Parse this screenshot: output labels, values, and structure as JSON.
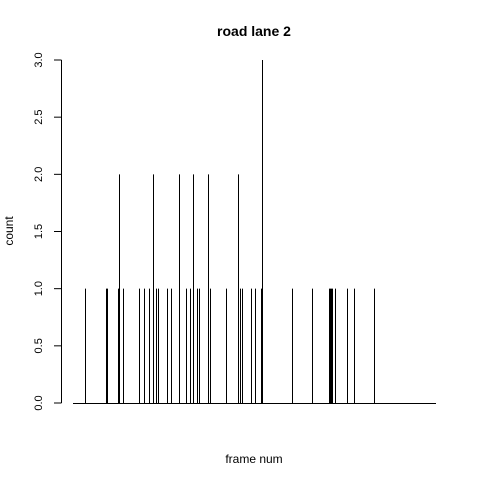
{
  "chart_data": {
    "type": "bar",
    "title": "road lane 2",
    "xlabel": "frame num",
    "ylabel": "count",
    "ylim": [
      0,
      3
    ],
    "yticks": [
      "0.0",
      "0.5",
      "1.0",
      "1.5",
      "2.0",
      "2.5",
      "3.0"
    ],
    "bar_color": "#000000",
    "x_axis_ticks_shown": false,
    "grid": false,
    "xlim": [
      0,
      160
    ],
    "points": [
      {
        "x": 3,
        "y": 1
      },
      {
        "x": 13,
        "y": 1
      },
      {
        "x": 13.5,
        "y": 1
      },
      {
        "x": 19,
        "y": 1
      },
      {
        "x": 19.5,
        "y": 2
      },
      {
        "x": 21.5,
        "y": 1
      },
      {
        "x": 29,
        "y": 1
      },
      {
        "x": 31.5,
        "y": 1
      },
      {
        "x": 34,
        "y": 1
      },
      {
        "x": 36,
        "y": 2
      },
      {
        "x": 37.5,
        "y": 1
      },
      {
        "x": 38.5,
        "y": 1
      },
      {
        "x": 43,
        "y": 1
      },
      {
        "x": 44.5,
        "y": 1
      },
      {
        "x": 48.5,
        "y": 2
      },
      {
        "x": 52,
        "y": 1
      },
      {
        "x": 54,
        "y": 1
      },
      {
        "x": 55.5,
        "y": 2
      },
      {
        "x": 57.5,
        "y": 1
      },
      {
        "x": 58.5,
        "y": 1
      },
      {
        "x": 62.5,
        "y": 2
      },
      {
        "x": 63.5,
        "y": 1
      },
      {
        "x": 71.5,
        "y": 1
      },
      {
        "x": 77.5,
        "y": 2
      },
      {
        "x": 78.5,
        "y": 1
      },
      {
        "x": 79.5,
        "y": 1
      },
      {
        "x": 83.5,
        "y": 1
      },
      {
        "x": 85.5,
        "y": 1
      },
      {
        "x": 88.5,
        "y": 1
      },
      {
        "x": 89,
        "y": 3
      },
      {
        "x": 103.5,
        "y": 1
      },
      {
        "x": 113.5,
        "y": 1
      },
      {
        "x": 121.5,
        "y": 1
      },
      {
        "x": 122,
        "y": 1
      },
      {
        "x": 122.5,
        "y": 1
      },
      {
        "x": 123,
        "y": 1
      },
      {
        "x": 124.5,
        "y": 1
      },
      {
        "x": 130.5,
        "y": 1
      },
      {
        "x": 133.5,
        "y": 1
      },
      {
        "x": 143.5,
        "y": 1
      }
    ]
  }
}
